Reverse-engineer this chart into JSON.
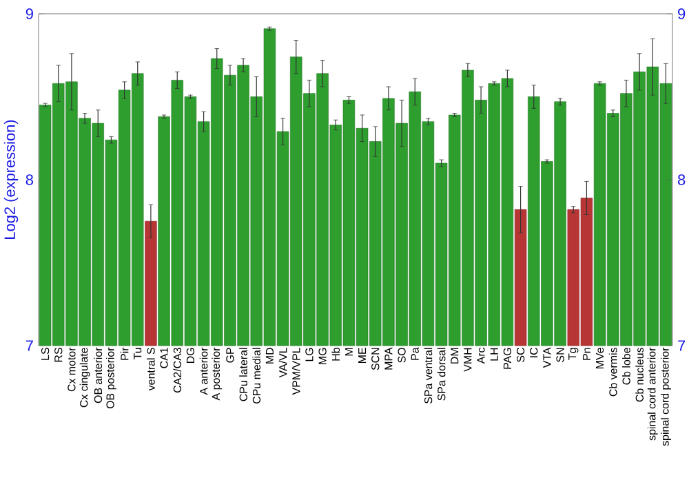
{
  "chart_data": {
    "type": "bar",
    "ylabel": "Log2 (expression)",
    "categories": [
      "LS",
      "RS",
      "Cx motor",
      "Cx cingulate",
      "OB anterior",
      "OB posterior",
      "Pir",
      "Tu",
      "ventral S",
      "CA1",
      "CA2/CA3",
      "DG",
      "A anterior",
      "A posterior",
      "GP",
      "CPu lateral",
      "CPu medial",
      "MD",
      "VA/VL",
      "VPM/VPL",
      "LG",
      "MG",
      "Hb",
      "M",
      "ME",
      "SCN",
      "MPA",
      "SO",
      "Pa",
      "SPa ventral",
      "SPa dorsal",
      "DM",
      "VMH",
      "Arc",
      "LH",
      "PAG",
      "SC",
      "IC",
      "VTA",
      "SN",
      "Tg",
      "Pn",
      "MVe",
      "Cb vermis",
      "Cb lobe",
      "Cb nucleus",
      "spinal cord anterior",
      "spinal cord posterior"
    ],
    "values": [
      8.45,
      8.58,
      8.59,
      8.37,
      8.34,
      8.24,
      8.54,
      8.64,
      7.75,
      8.38,
      8.6,
      8.5,
      8.35,
      8.73,
      8.63,
      8.69,
      8.5,
      8.91,
      8.29,
      8.74,
      8.52,
      8.64,
      8.33,
      8.48,
      8.31,
      8.23,
      8.49,
      8.34,
      8.53,
      8.35,
      8.1,
      8.39,
      8.66,
      8.48,
      8.58,
      8.61,
      7.82,
      8.5,
      8.11,
      8.47,
      7.82,
      7.89,
      8.58,
      8.4,
      8.52,
      8.65,
      8.68,
      8.58
    ],
    "errors": [
      0.01,
      0.11,
      0.17,
      0.03,
      0.08,
      0.02,
      0.05,
      0.07,
      0.1,
      0.01,
      0.05,
      0.01,
      0.06,
      0.06,
      0.06,
      0.04,
      0.12,
      0.01,
      0.08,
      0.1,
      0.08,
      0.08,
      0.03,
      0.02,
      0.08,
      0.09,
      0.07,
      0.14,
      0.08,
      0.02,
      0.02,
      0.01,
      0.04,
      0.08,
      0.01,
      0.05,
      0.14,
      0.07,
      0.01,
      0.02,
      0.02,
      0.1,
      0.01,
      0.02,
      0.08,
      0.11,
      0.17,
      0.12
    ],
    "colors": [
      "#2e9e2e",
      "#2e9e2e",
      "#2e9e2e",
      "#2e9e2e",
      "#2e9e2e",
      "#2e9e2e",
      "#2e9e2e",
      "#2e9e2e",
      "#b83535",
      "#2e9e2e",
      "#2e9e2e",
      "#2e9e2e",
      "#2e9e2e",
      "#2e9e2e",
      "#2e9e2e",
      "#2e9e2e",
      "#2e9e2e",
      "#2e9e2e",
      "#2e9e2e",
      "#2e9e2e",
      "#2e9e2e",
      "#2e9e2e",
      "#2e9e2e",
      "#2e9e2e",
      "#2e9e2e",
      "#2e9e2e",
      "#2e9e2e",
      "#2e9e2e",
      "#2e9e2e",
      "#2e9e2e",
      "#2e9e2e",
      "#2e9e2e",
      "#2e9e2e",
      "#2e9e2e",
      "#2e9e2e",
      "#2e9e2e",
      "#b83535",
      "#2e9e2e",
      "#2e9e2e",
      "#2e9e2e",
      "#b83535",
      "#b83535",
      "#2e9e2e",
      "#2e9e2e",
      "#2e9e2e",
      "#2e9e2e",
      "#2e9e2e",
      "#2e9e2e"
    ],
    "ylim": [
      7,
      9
    ],
    "yticks": [
      7,
      8,
      9
    ],
    "y2lim": [
      7,
      9
    ],
    "y2ticks": [
      7,
      8,
      9
    ]
  }
}
